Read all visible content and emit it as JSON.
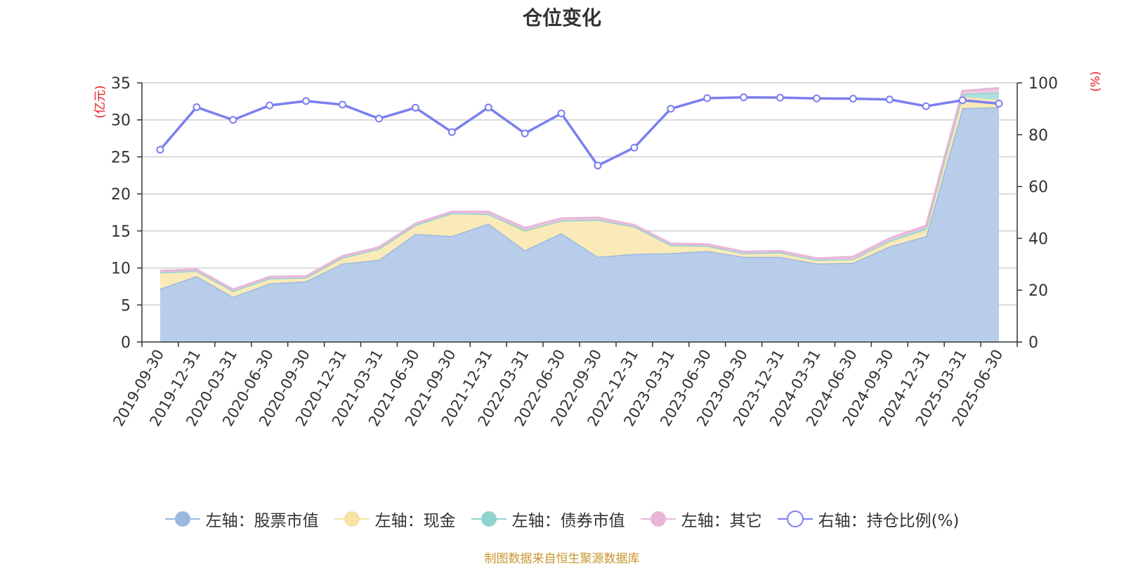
{
  "chart_data": {
    "type": "area",
    "title": "仓位变化",
    "x": [
      "2019-09-30",
      "2019-12-31",
      "2020-03-31",
      "2020-06-30",
      "2020-09-30",
      "2020-12-31",
      "2021-03-31",
      "2021-06-30",
      "2021-09-30",
      "2021-12-31",
      "2022-03-31",
      "2022-06-30",
      "2022-09-30",
      "2022-12-31",
      "2023-03-31",
      "2023-06-30",
      "2023-09-30",
      "2023-12-31",
      "2024-03-31",
      "2024-06-30",
      "2024-09-30",
      "2024-12-31",
      "2025-03-31",
      "2025-06-30"
    ],
    "left_axis": {
      "label": "(亿元)",
      "ylim": [
        0,
        35
      ],
      "ticks": [
        0,
        5,
        10,
        15,
        20,
        25,
        30,
        35
      ]
    },
    "right_axis": {
      "label": "(%)",
      "ylim": [
        0,
        100
      ],
      "ticks": [
        0,
        20,
        40,
        60,
        80,
        100
      ]
    },
    "grid": true,
    "legend_position": "bottom",
    "series": [
      {
        "name": "左轴：股票市值",
        "axis": "left",
        "stack": true,
        "color": "#9bb8e0",
        "fill": "#b8cdea",
        "values": [
          7.2,
          8.9,
          6.1,
          7.9,
          8.2,
          10.6,
          11.1,
          14.6,
          14.3,
          16.0,
          12.4,
          14.7,
          11.5,
          11.9,
          12.0,
          12.3,
          11.5,
          11.5,
          10.6,
          10.7,
          12.9,
          14.3,
          31.6,
          31.7
        ]
      },
      {
        "name": "左轴：现金",
        "axis": "left",
        "stack": true,
        "color": "#f7e3a3",
        "fill": "#faeab8",
        "values": [
          2.2,
          0.7,
          0.8,
          0.7,
          0.5,
          0.8,
          1.5,
          1.2,
          3.1,
          1.3,
          2.5,
          1.7,
          5.0,
          3.7,
          1.1,
          0.7,
          0.5,
          0.6,
          0.5,
          0.5,
          0.6,
          0.8,
          1.5,
          1.0
        ]
      },
      {
        "name": "左轴：债券市值",
        "axis": "left",
        "stack": true,
        "color": "#8fd3d1",
        "fill": "#aee0de",
        "values": [
          0.0,
          0.0,
          0.0,
          0.0,
          0.0,
          0.0,
          0.0,
          0.0,
          0.0,
          0.0,
          0.2,
          0.0,
          0.0,
          0.0,
          0.0,
          0.0,
          0.0,
          0.0,
          0.0,
          0.0,
          0.2,
          0.3,
          0.4,
          1.0
        ]
      },
      {
        "name": "左轴：其它",
        "axis": "left",
        "stack": true,
        "color": "#e8b6d8",
        "fill": "#eec9e2",
        "values": [
          0.2,
          0.2,
          0.2,
          0.2,
          0.2,
          0.2,
          0.2,
          0.2,
          0.2,
          0.3,
          0.3,
          0.3,
          0.3,
          0.2,
          0.2,
          0.2,
          0.2,
          0.2,
          0.2,
          0.3,
          0.3,
          0.3,
          0.4,
          0.6
        ]
      },
      {
        "name": "右轴：持仓比例(%)",
        "axis": "right",
        "type": "line",
        "color": "#7b7ff0",
        "values": [
          74.2,
          90.6,
          85.7,
          91.3,
          93.0,
          91.6,
          86.2,
          90.4,
          81.0,
          90.5,
          80.5,
          88.2,
          68.1,
          75.0,
          90.0,
          94.1,
          94.4,
          94.3,
          94.0,
          93.9,
          93.6,
          91.0,
          93.3,
          92.0
        ]
      }
    ]
  },
  "footer": {
    "source": "制图数据来自恒生聚源数据库"
  }
}
